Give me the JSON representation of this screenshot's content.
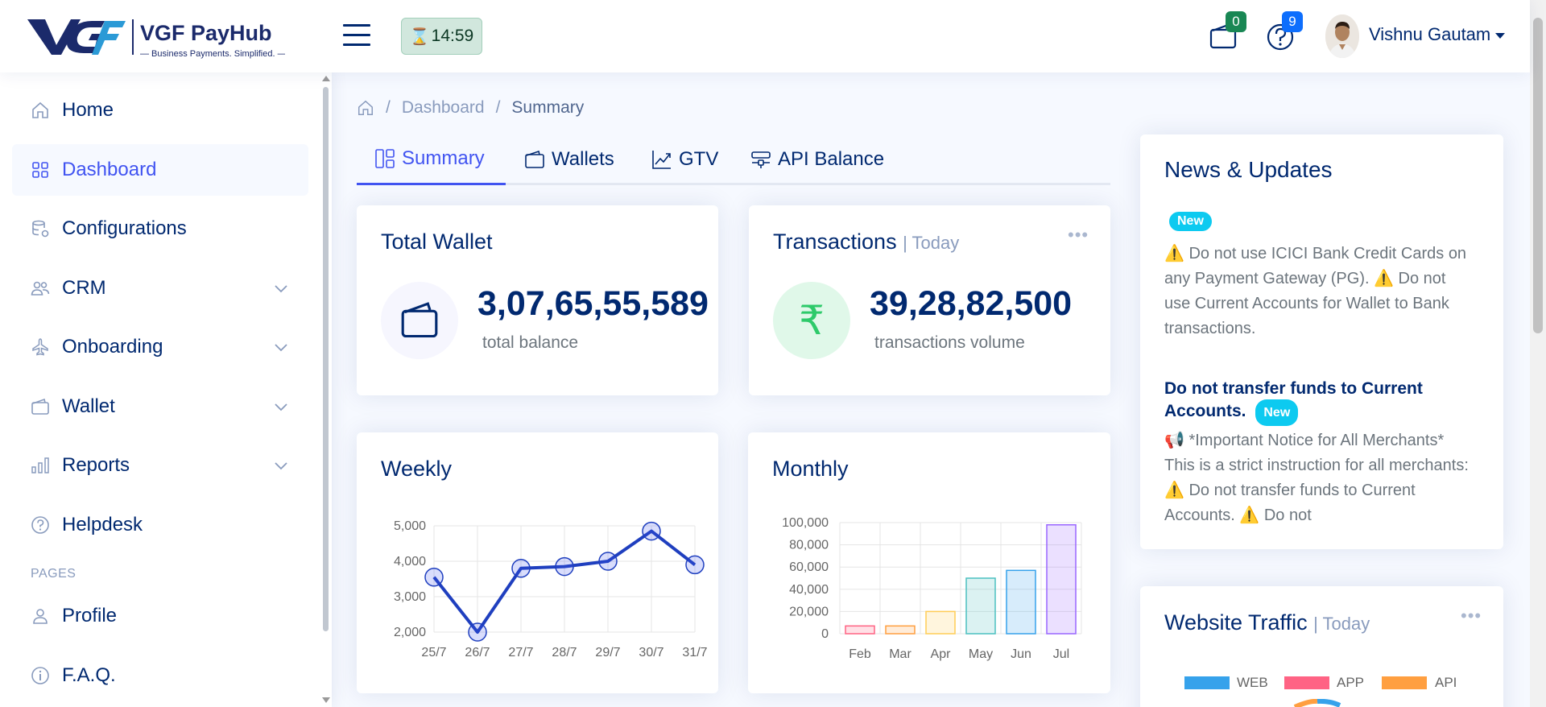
{
  "header": {
    "brand_name": "VGF PayHub",
    "brand_tagline": "— Business Payments. Simplified. —",
    "timer_value": "14:59",
    "wallet_badge": "0",
    "help_badge": "9",
    "user_name": "Vishnu Gautam"
  },
  "sidebar": {
    "items": [
      {
        "label": "Home",
        "icon": "house-icon"
      },
      {
        "label": "Dashboard",
        "icon": "grid-icon"
      },
      {
        "label": "Configurations",
        "icon": "database-gear-icon"
      },
      {
        "label": "CRM",
        "icon": "people-icon"
      },
      {
        "label": "Onboarding",
        "icon": "airplane-icon"
      },
      {
        "label": "Wallet",
        "icon": "wallet-icon"
      },
      {
        "label": "Reports",
        "icon": "bar-chart-icon"
      },
      {
        "label": "Helpdesk",
        "icon": "question-circle-icon"
      }
    ],
    "pages_heading": "PAGES",
    "pages_items": [
      {
        "label": "Profile",
        "icon": "person-icon"
      },
      {
        "label": "F.A.Q.",
        "icon": "info-circle-icon"
      }
    ]
  },
  "breadcrumb": {
    "items": [
      "Dashboard",
      "Summary"
    ]
  },
  "tabs": [
    {
      "label": "Summary",
      "icon": "layout-icon"
    },
    {
      "label": "Wallets",
      "icon": "wallet-icon"
    },
    {
      "label": "GTV",
      "icon": "graph-up-icon"
    },
    {
      "label": "API Balance",
      "icon": "sliders-icon"
    }
  ],
  "total_wallet": {
    "title": "Total Wallet",
    "value": "3,07,65,55,589",
    "label": "total balance"
  },
  "transactions": {
    "title": "Transactions",
    "period": "| Today",
    "value": "39,28,82,500",
    "label": "transactions volume",
    "currency_symbol": "₹"
  },
  "weekly": {
    "title": "Weekly"
  },
  "monthly": {
    "title": "Monthly"
  },
  "news": {
    "title": "News & Updates",
    "badge": "New",
    "item1_body": "⚠️ Do not use ICICI Bank Credit Cards on any Payment Gateway (PG). ⚠️ Do not use Current Accounts for Wallet to Bank transactions.",
    "item2_title": "Do not transfer funds to Current Accounts.",
    "item2_body": "📢 *Important Notice for All Merchants* This is a strict instruction for all merchants: ⚠️ Do not transfer funds to Current Accounts. ⚠️ Do not"
  },
  "traffic": {
    "title": "Website Traffic",
    "period": "| Today",
    "legend": [
      {
        "label": "WEB",
        "color": "#36a2eb"
      },
      {
        "label": "APP",
        "color": "#ff6384"
      },
      {
        "label": "API",
        "color": "#ff9f40"
      }
    ]
  },
  "chart_data": [
    {
      "type": "line",
      "title": "",
      "x": [
        "25/7",
        "26/7",
        "27/7",
        "28/7",
        "29/7",
        "30/7",
        "31/7"
      ],
      "values": [
        3550,
        2000,
        3800,
        3850,
        4000,
        4850,
        3900
      ],
      "yticks": [
        "5,000",
        "4,000",
        "3,000",
        "2,000"
      ],
      "ylim": [
        2000,
        5000
      ],
      "color": "#1f3fbf",
      "grid": true
    },
    {
      "type": "bar",
      "title": "",
      "categories": [
        "Feb",
        "Mar",
        "Apr",
        "May",
        "Jun",
        "Jul"
      ],
      "values": [
        7000,
        7000,
        20000,
        50000,
        57000,
        98000
      ],
      "yticks": [
        "100,000",
        "80,000",
        "60,000",
        "40,000",
        "20,000",
        "0"
      ],
      "ylim": [
        0,
        100000
      ],
      "colors": [
        "#ff6384",
        "#ff9f40",
        "#ffcd56",
        "#4bc0c0",
        "#36a2eb",
        "#9966ff"
      ],
      "grid": true
    }
  ]
}
